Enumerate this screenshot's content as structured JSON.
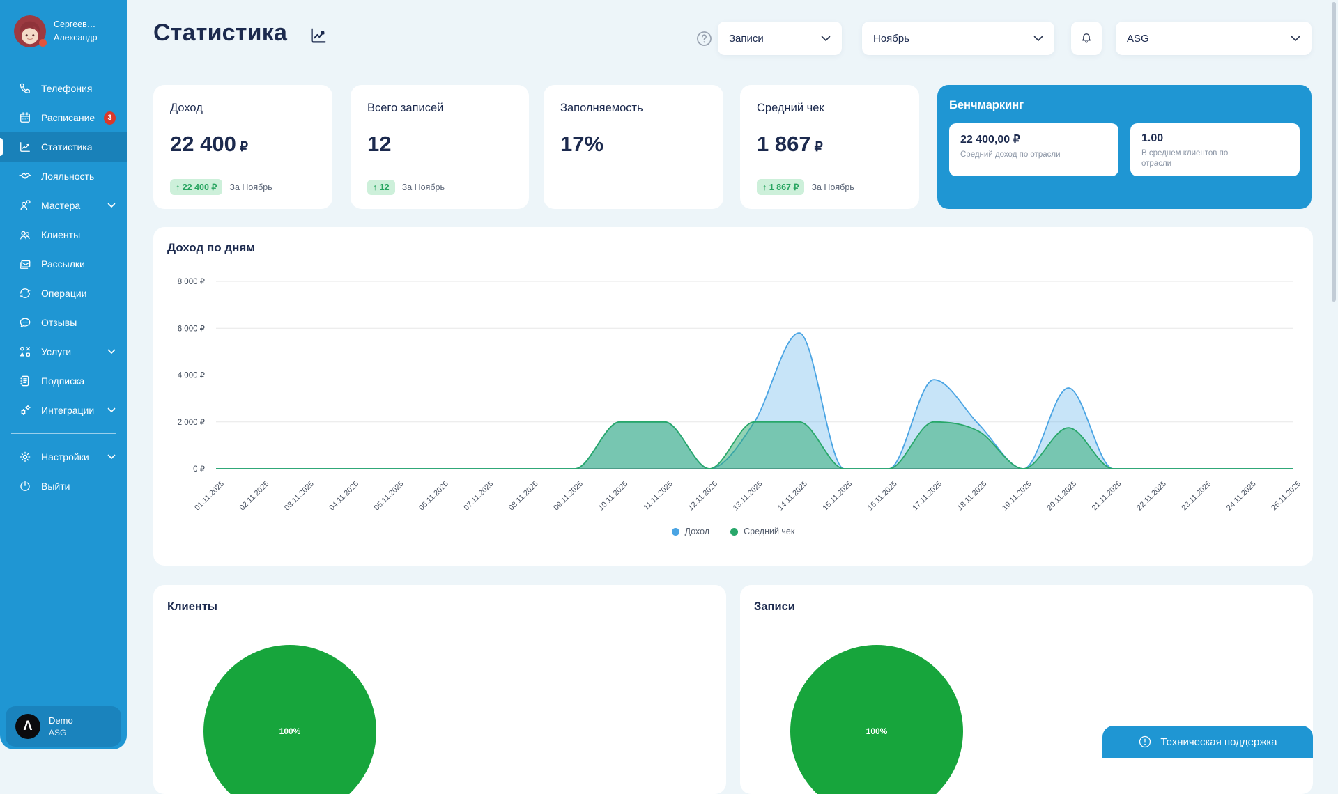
{
  "colors": {
    "accent": "#1F96D3",
    "navy_text": "#1C2A4E",
    "badge_red": "#D9382B",
    "badge_green_bg": "#CDF0DA",
    "badge_green_text": "#27A45F",
    "pie_green": "#17A53C"
  },
  "user": {
    "name_line1": "Сергеев…",
    "name_line2": "Александр"
  },
  "sidebar": {
    "items": [
      {
        "label": "Телефония"
      },
      {
        "label": "Расписание",
        "badge": "3"
      },
      {
        "label": "Статистика",
        "active": true
      },
      {
        "label": "Лояльность"
      },
      {
        "label": "Мастера",
        "chevron": true
      },
      {
        "label": "Клиенты"
      },
      {
        "label": "Рассылки"
      },
      {
        "label": "Операции"
      },
      {
        "label": "Отзывы"
      },
      {
        "label": "Услуги",
        "chevron": true
      },
      {
        "label": "Подписка"
      },
      {
        "label": "Интеграции",
        "chevron": true
      }
    ],
    "footer_items": [
      {
        "label": "Настройки",
        "chevron": true
      },
      {
        "label": "Выйти"
      }
    ],
    "workspace": {
      "logo_glyph": "Λ",
      "name": "Demo",
      "org": "ASG"
    }
  },
  "header": {
    "title": "Статистика",
    "filter_records": "Записи",
    "filter_month": "Ноябрь",
    "workspace_select": "ASG"
  },
  "stat_cards": [
    {
      "title": "Доход",
      "value": "22 400",
      "suffix": "₽",
      "badge": "↑ 22 400 ₽",
      "period": "За Ноябрь"
    },
    {
      "title": "Всего записей",
      "value": "12",
      "suffix": "",
      "badge": "↑ 12",
      "period": "За Ноябрь"
    },
    {
      "title": "Заполняемость",
      "value": "17%",
      "suffix": "",
      "badge": "",
      "period": ""
    },
    {
      "title": "Средний чек",
      "value": "1 867",
      "suffix": "₽",
      "badge": "↑ 1 867 ₽",
      "period": "За Ноябрь"
    }
  ],
  "benchmark": {
    "title": "Бенчмаркинг",
    "metrics": [
      {
        "value": "22 400,00 ₽",
        "label": "Средний доход по отрасли"
      },
      {
        "value": "1.00",
        "label": "В среднем клиентов по отрасли"
      }
    ]
  },
  "chart_data": {
    "type": "area",
    "title": "Доход по дням",
    "x": [
      "01.11.2025",
      "02.11.2025",
      "03.11.2025",
      "04.11.2025",
      "05.11.2025",
      "06.11.2025",
      "07.11.2025",
      "08.11.2025",
      "09.11.2025",
      "10.11.2025",
      "11.11.2025",
      "12.11.2025",
      "13.11.2025",
      "14.11.2025",
      "15.11.2025",
      "16.11.2025",
      "17.11.2025",
      "18.11.2025",
      "19.11.2025",
      "20.11.2025",
      "21.11.2025",
      "22.11.2025",
      "23.11.2025",
      "24.11.2025",
      "25.11.2025"
    ],
    "series": [
      {
        "name": "Доход",
        "color": "#4AA4E3",
        "fill": "rgba(94,177,234,0.35)",
        "values": [
          0,
          0,
          0,
          0,
          0,
          0,
          0,
          0,
          0,
          2000,
          2000,
          0,
          2000,
          5800,
          0,
          0,
          3800,
          1900,
          0,
          3450,
          0,
          0,
          0,
          0,
          0
        ]
      },
      {
        "name": "Средний чек",
        "color": "#28A76A",
        "fill": "rgba(40,167,106,0.5)",
        "values": [
          0,
          0,
          0,
          0,
          0,
          0,
          0,
          0,
          0,
          2000,
          2000,
          0,
          2000,
          2000,
          0,
          0,
          2000,
          1600,
          0,
          1750,
          0,
          0,
          0,
          0,
          0
        ]
      }
    ],
    "ylim": [
      0,
      8000
    ],
    "yticks": [
      {
        "v": 0,
        "label": "0 ₽"
      },
      {
        "v": 2000,
        "label": "2 000 ₽"
      },
      {
        "v": 4000,
        "label": "4 000 ₽"
      },
      {
        "v": 6000,
        "label": "6 000 ₽"
      },
      {
        "v": 8000,
        "label": "8 000 ₽"
      }
    ],
    "grid": true,
    "legend_position": "bottom",
    "smooth": true
  },
  "pie_cards": [
    {
      "title": "Клиенты",
      "value_label": "100%",
      "color": "#17A53C"
    },
    {
      "title": "Записи",
      "value_label": "100%",
      "color": "#17A53C"
    }
  ],
  "support": {
    "label": "Техническая поддержка"
  }
}
